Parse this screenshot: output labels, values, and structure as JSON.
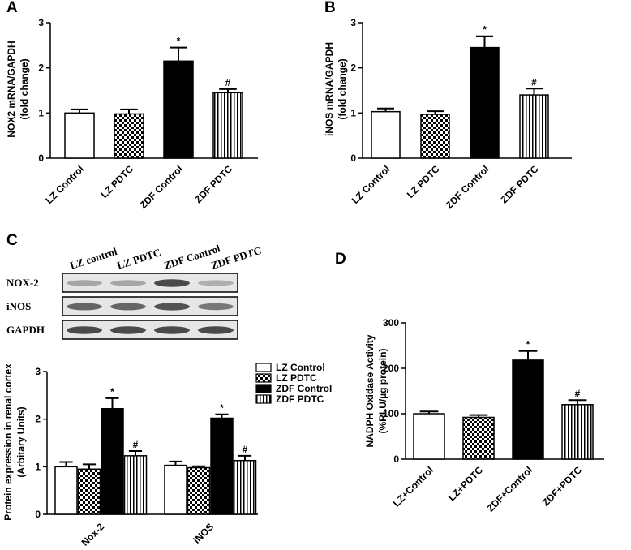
{
  "chart_data": [
    {
      "type": "bar",
      "title": "A",
      "ylabel": [
        "NOX2 mRNA/GAPDH",
        "(fold change)"
      ],
      "categories": [
        "LZ Control",
        "LZ PDTC",
        "ZDF Control",
        "ZDF PDTC"
      ],
      "values": [
        1.0,
        0.98,
        2.15,
        1.45
      ],
      "errors": [
        0.08,
        0.1,
        0.3,
        0.08
      ],
      "patterns": [
        "white",
        "checker",
        "black",
        "stripes"
      ],
      "annotations": [
        {
          "category": "ZDF Control",
          "text": "*"
        },
        {
          "category": "ZDF PDTC",
          "text": "#"
        }
      ],
      "ylim": [
        0,
        3
      ],
      "yticks": [
        0,
        1,
        2,
        3
      ]
    },
    {
      "type": "bar",
      "title": "B",
      "ylabel": [
        "iNOS mRNA/GAPDH",
        "(fold change)"
      ],
      "categories": [
        "LZ Control",
        "LZ PDTC",
        "ZDF Control",
        "ZDF PDTC"
      ],
      "values": [
        1.03,
        0.97,
        2.45,
        1.4
      ],
      "errors": [
        0.07,
        0.07,
        0.25,
        0.14
      ],
      "patterns": [
        "white",
        "checker",
        "black",
        "stripes"
      ],
      "annotations": [
        {
          "category": "ZDF Control",
          "text": "*"
        },
        {
          "category": "ZDF PDTC",
          "text": "#"
        }
      ],
      "ylim": [
        0,
        3
      ],
      "yticks": [
        0,
        1,
        2,
        3
      ]
    },
    {
      "type": "grouped_bar",
      "title": "C",
      "ylabel": [
        "Protein expression in renal cortex",
        "(Arbitary Units)"
      ],
      "blot": {
        "lanes": [
          "LZ control",
          "LZ PDTC",
          "ZDF Control",
          "ZDF PDTC"
        ],
        "rows": [
          "NOX-2",
          "iNOS",
          "GAPDH"
        ]
      },
      "categories": [
        "Nox-2",
        "iNOS"
      ],
      "series": [
        {
          "name": "LZ Control",
          "pattern": "white",
          "values": [
            1.0,
            1.03
          ],
          "errors": [
            0.1,
            0.08
          ]
        },
        {
          "name": "LZ PDTC",
          "pattern": "checker",
          "values": [
            0.95,
            0.98
          ],
          "errors": [
            0.1,
            0.03
          ]
        },
        {
          "name": "ZDF Control",
          "pattern": "black",
          "values": [
            2.22,
            2.02
          ],
          "errors": [
            0.22,
            0.08
          ]
        },
        {
          "name": "ZDF PDTC",
          "pattern": "stripes",
          "values": [
            1.23,
            1.13
          ],
          "errors": [
            0.1,
            0.1
          ]
        }
      ],
      "annotations": [
        {
          "category": "Nox-2",
          "series": "ZDF Control",
          "text": "*"
        },
        {
          "category": "Nox-2",
          "series": "ZDF PDTC",
          "text": "#"
        },
        {
          "category": "iNOS",
          "series": "ZDF Control",
          "text": "*"
        },
        {
          "category": "iNOS",
          "series": "ZDF PDTC",
          "text": "#"
        }
      ],
      "ylim": [
        0,
        3
      ],
      "yticks": [
        0,
        1,
        2,
        3
      ],
      "legend": "top-right"
    },
    {
      "type": "bar",
      "title": "D",
      "ylabel": [
        "NADPH Oxidase Activity",
        "(%RLU/µg protein)"
      ],
      "categories": [
        "LZ+Control",
        "LZ+PDTC",
        "ZDF+Control",
        "ZDF+PDTC"
      ],
      "values": [
        100,
        92,
        218,
        120
      ],
      "errors": [
        5,
        5,
        20,
        10
      ],
      "patterns": [
        "white",
        "checker",
        "black",
        "stripes"
      ],
      "annotations": [
        {
          "category": "ZDF+Control",
          "text": "*"
        },
        {
          "category": "ZDF+PDTC",
          "text": "#"
        }
      ],
      "ylim": [
        0,
        300
      ],
      "yticks": [
        0,
        100,
        200,
        300
      ]
    }
  ]
}
